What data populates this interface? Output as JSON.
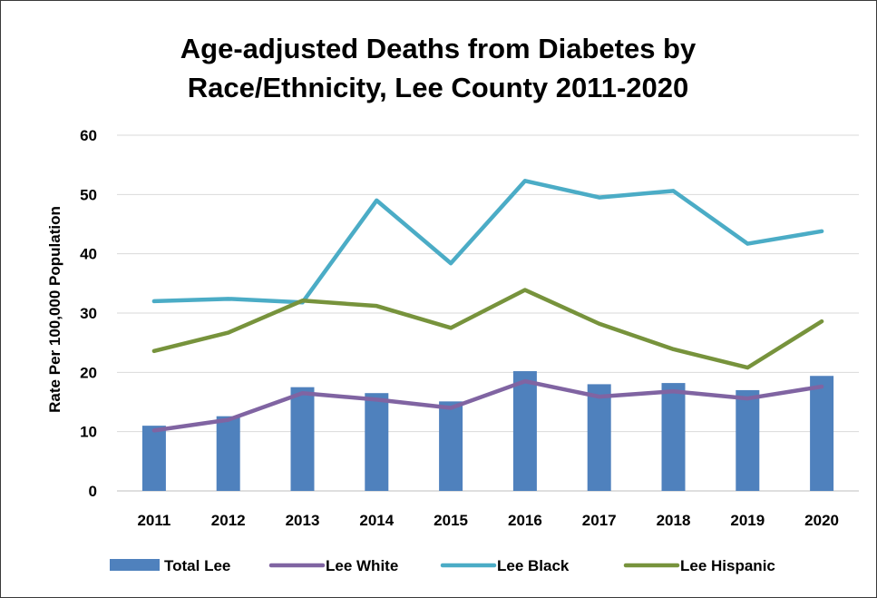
{
  "chart_data": {
    "type": "bar",
    "title_lines": [
      "Age-adjusted Deaths from Diabetes by",
      "Race/Ethnicity, Lee County 2011-2020"
    ],
    "xlabel": "",
    "ylabel": "Rate Per 100,000 Population",
    "ylim": [
      0,
      60
    ],
    "yticks": [
      0,
      10,
      20,
      30,
      40,
      50,
      60
    ],
    "grid": true,
    "legend_position": "bottom",
    "categories": [
      "2011",
      "2012",
      "2013",
      "2014",
      "2015",
      "2016",
      "2017",
      "2018",
      "2019",
      "2020"
    ],
    "series": [
      {
        "name": "Total Lee",
        "kind": "bar",
        "color": "#4f81bd",
        "values": [
          11.0,
          12.6,
          17.5,
          16.5,
          15.1,
          20.2,
          18.0,
          18.2,
          17.0,
          19.4
        ]
      },
      {
        "name": "Lee White",
        "kind": "line",
        "color": "#8064a2",
        "values": [
          10.2,
          12.0,
          16.5,
          15.4,
          14.0,
          18.5,
          15.9,
          16.8,
          15.6,
          17.6
        ]
      },
      {
        "name": "Lee Black",
        "kind": "line",
        "color": "#4bacc6",
        "values": [
          32.0,
          32.4,
          31.8,
          49.0,
          38.4,
          52.3,
          49.5,
          50.6,
          41.7,
          43.8
        ]
      },
      {
        "name": "Lee Hispanic",
        "kind": "line",
        "color": "#77933c",
        "values": [
          23.6,
          26.7,
          32.1,
          31.2,
          27.5,
          33.9,
          28.2,
          23.9,
          20.8,
          28.6
        ]
      }
    ]
  }
}
